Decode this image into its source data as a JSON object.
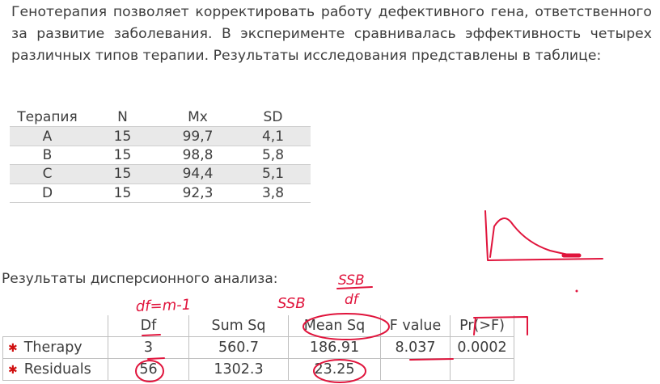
{
  "intro_text": "Генотерапия позволяет корректировать работу дефективного гена, ответственного за развитие заболевания. В эксперименте сравнивалась эффективность четырех различных типов терапии. Результаты исследования представлены в таблице:",
  "therapy_table": {
    "headers": [
      "Терапия",
      "N",
      "Mx",
      "SD"
    ],
    "rows": [
      [
        "A",
        "15",
        "99,7",
        "4,1"
      ],
      [
        "B",
        "15",
        "98,8",
        "5,8"
      ],
      [
        "C",
        "15",
        "94,4",
        "5,1"
      ],
      [
        "D",
        "15",
        "92,3",
        "3,8"
      ]
    ]
  },
  "anova_title": "Результаты дисперсионного анализа:",
  "anova_table": {
    "headers": [
      "",
      "Df",
      "Sum Sq",
      "Mean Sq",
      "F value",
      "Pr(>F)"
    ],
    "rows": [
      [
        "Therapy",
        "3",
        "560.7",
        "186.91",
        "8.037",
        "0.0002"
      ],
      [
        "Residuals",
        "56",
        "1302.3",
        "23.25",
        "",
        ""
      ]
    ]
  },
  "annotations": {
    "df_formula": "df=m-1",
    "ssb": "SSB",
    "frac_num": "SSB",
    "frac_den": "df"
  },
  "ink_color": "#e0143c"
}
